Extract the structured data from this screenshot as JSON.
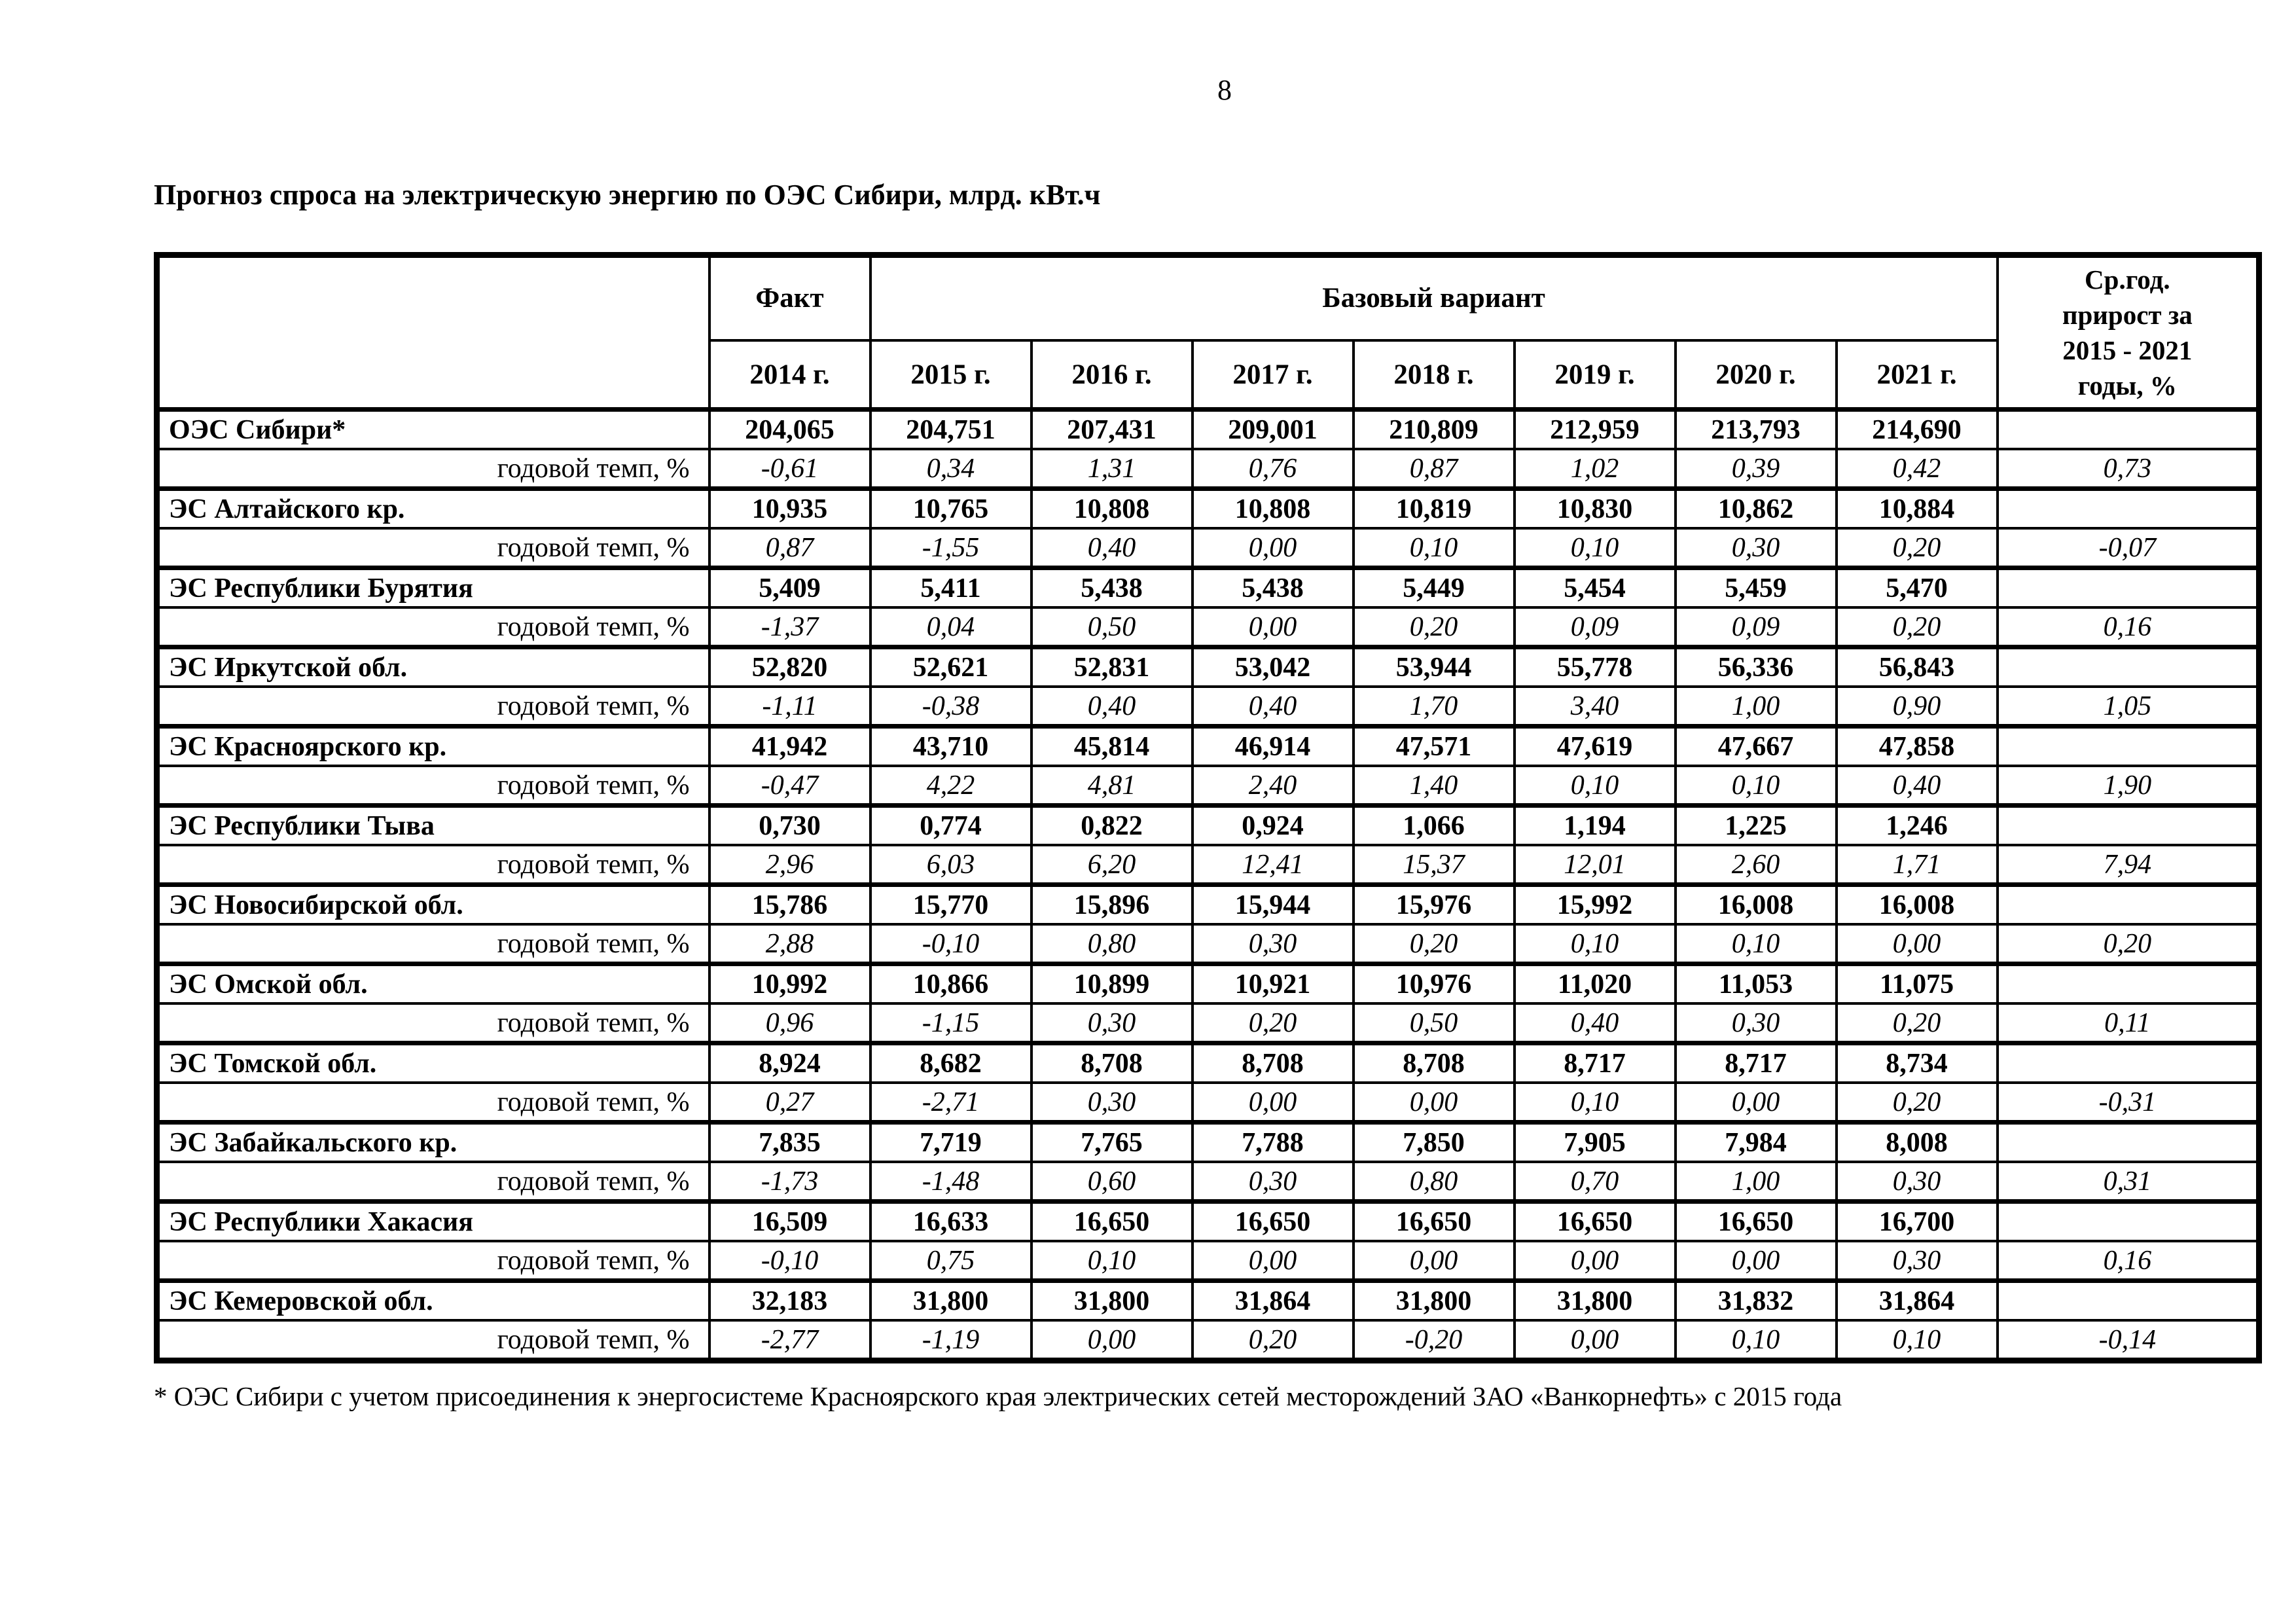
{
  "colors": {
    "background": "#ffffff",
    "text": "#000000",
    "border": "#000000"
  },
  "page": {
    "number": "8",
    "title": "Прогноз спроса на электрическую энергию по ОЭС Сибири, млрд. кВт.ч",
    "footnote": "* ОЭС Сибири с учетом присоединения к энергосистеме Красноярского края электрических сетей месторождений ЗАО «Ванкорнефть» с 2015 года"
  },
  "table": {
    "header": {
      "fact_label": "Факт",
      "base_label": "Базовый вариант",
      "avg_label": "Ср.год.\nприрост за\n2015 - 2021\nгоды, %",
      "years": [
        "2014 г.",
        "2015 г.",
        "2016 г.",
        "2017 г.",
        "2018 г.",
        "2019 г.",
        "2020 г.",
        "2021 г."
      ]
    },
    "rows": [
      {
        "type": "region",
        "label": "ОЭС Сибири*",
        "values": [
          "204,065",
          "204,751",
          "207,431",
          "209,001",
          "210,809",
          "212,959",
          "213,793",
          "214,690",
          ""
        ]
      },
      {
        "type": "rate",
        "label": "годовой темп, %",
        "values": [
          "-0,61",
          "0,34",
          "1,31",
          "0,76",
          "0,87",
          "1,02",
          "0,39",
          "0,42",
          "0,73"
        ]
      },
      {
        "type": "region",
        "label": "ЭС Алтайского кр.",
        "values": [
          "10,935",
          "10,765",
          "10,808",
          "10,808",
          "10,819",
          "10,830",
          "10,862",
          "10,884",
          ""
        ]
      },
      {
        "type": "rate",
        "label": "годовой темп, %",
        "values": [
          "0,87",
          "-1,55",
          "0,40",
          "0,00",
          "0,10",
          "0,10",
          "0,30",
          "0,20",
          "-0,07"
        ]
      },
      {
        "type": "region",
        "label": "ЭС Республики Бурятия",
        "values": [
          "5,409",
          "5,411",
          "5,438",
          "5,438",
          "5,449",
          "5,454",
          "5,459",
          "5,470",
          ""
        ]
      },
      {
        "type": "rate",
        "label": "годовой темп, %",
        "values": [
          "-1,37",
          "0,04",
          "0,50",
          "0,00",
          "0,20",
          "0,09",
          "0,09",
          "0,20",
          "0,16"
        ]
      },
      {
        "type": "region",
        "label": "ЭС Иркутской обл.",
        "values": [
          "52,820",
          "52,621",
          "52,831",
          "53,042",
          "53,944",
          "55,778",
          "56,336",
          "56,843",
          ""
        ]
      },
      {
        "type": "rate",
        "label": "годовой темп, %",
        "values": [
          "-1,11",
          "-0,38",
          "0,40",
          "0,40",
          "1,70",
          "3,40",
          "1,00",
          "0,90",
          "1,05"
        ]
      },
      {
        "type": "region",
        "label": "ЭС Красноярского кр.",
        "values": [
          "41,942",
          "43,710",
          "45,814",
          "46,914",
          "47,571",
          "47,619",
          "47,667",
          "47,858",
          ""
        ]
      },
      {
        "type": "rate",
        "label": "годовой темп, %",
        "values": [
          "-0,47",
          "4,22",
          "4,81",
          "2,40",
          "1,40",
          "0,10",
          "0,10",
          "0,40",
          "1,90"
        ]
      },
      {
        "type": "region",
        "label": "ЭС Республики Тыва",
        "values": [
          "0,730",
          "0,774",
          "0,822",
          "0,924",
          "1,066",
          "1,194",
          "1,225",
          "1,246",
          ""
        ]
      },
      {
        "type": "rate",
        "label": "годовой темп, %",
        "values": [
          "2,96",
          "6,03",
          "6,20",
          "12,41",
          "15,37",
          "12,01",
          "2,60",
          "1,71",
          "7,94"
        ]
      },
      {
        "type": "region",
        "label": "ЭС Новосибирской обл.",
        "values": [
          "15,786",
          "15,770",
          "15,896",
          "15,944",
          "15,976",
          "15,992",
          "16,008",
          "16,008",
          ""
        ]
      },
      {
        "type": "rate",
        "label": "годовой темп, %",
        "values": [
          "2,88",
          "-0,10",
          "0,80",
          "0,30",
          "0,20",
          "0,10",
          "0,10",
          "0,00",
          "0,20"
        ]
      },
      {
        "type": "region",
        "label": "ЭС Омской обл.",
        "values": [
          "10,992",
          "10,866",
          "10,899",
          "10,921",
          "10,976",
          "11,020",
          "11,053",
          "11,075",
          ""
        ]
      },
      {
        "type": "rate",
        "label": "годовой темп, %",
        "values": [
          "0,96",
          "-1,15",
          "0,30",
          "0,20",
          "0,50",
          "0,40",
          "0,30",
          "0,20",
          "0,11"
        ]
      },
      {
        "type": "region",
        "label": "ЭС Томской обл.",
        "values": [
          "8,924",
          "8,682",
          "8,708",
          "8,708",
          "8,708",
          "8,717",
          "8,717",
          "8,734",
          ""
        ]
      },
      {
        "type": "rate",
        "label": "годовой темп, %",
        "values": [
          "0,27",
          "-2,71",
          "0,30",
          "0,00",
          "0,00",
          "0,10",
          "0,00",
          "0,20",
          "-0,31"
        ]
      },
      {
        "type": "region",
        "label": "ЭС Забайкальского кр.",
        "values": [
          "7,835",
          "7,719",
          "7,765",
          "7,788",
          "7,850",
          "7,905",
          "7,984",
          "8,008",
          ""
        ]
      },
      {
        "type": "rate",
        "label": "годовой темп, %",
        "values": [
          "-1,73",
          "-1,48",
          "0,60",
          "0,30",
          "0,80",
          "0,70",
          "1,00",
          "0,30",
          "0,31"
        ]
      },
      {
        "type": "region",
        "label": "ЭС Республики Хакасия",
        "values": [
          "16,509",
          "16,633",
          "16,650",
          "16,650",
          "16,650",
          "16,650",
          "16,650",
          "16,700",
          ""
        ]
      },
      {
        "type": "rate",
        "label": "годовой темп, %",
        "values": [
          "-0,10",
          "0,75",
          "0,10",
          "0,00",
          "0,00",
          "0,00",
          "0,00",
          "0,30",
          "0,16"
        ]
      },
      {
        "type": "region",
        "label": "ЭС Кемеровской обл.",
        "values": [
          "32,183",
          "31,800",
          "31,800",
          "31,864",
          "31,800",
          "31,800",
          "31,832",
          "31,864",
          ""
        ]
      },
      {
        "type": "rate",
        "label": "годовой темп, %",
        "values": [
          "-2,77",
          "-1,19",
          "0,00",
          "0,20",
          "-0,20",
          "0,00",
          "0,10",
          "0,10",
          "-0,14"
        ]
      }
    ]
  }
}
